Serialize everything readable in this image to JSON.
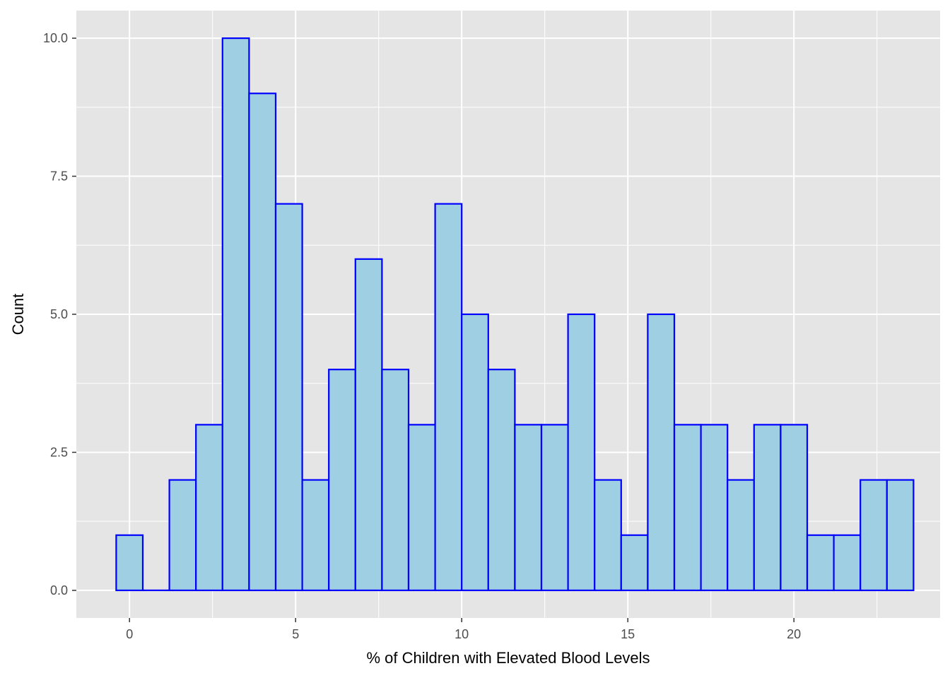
{
  "chart_data": {
    "type": "bar",
    "subtype": "histogram",
    "title": "",
    "xlabel": "% of Children with Elevated Blood Levels",
    "ylabel": "Count",
    "bin_width": 0.8,
    "bins": [
      {
        "x": 0.0,
        "count": 1
      },
      {
        "x": 0.8,
        "count": 0
      },
      {
        "x": 1.6,
        "count": 2
      },
      {
        "x": 2.4,
        "count": 3
      },
      {
        "x": 3.2,
        "count": 10
      },
      {
        "x": 4.0,
        "count": 9
      },
      {
        "x": 4.8,
        "count": 7
      },
      {
        "x": 5.6,
        "count": 2
      },
      {
        "x": 6.4,
        "count": 4
      },
      {
        "x": 7.2,
        "count": 6
      },
      {
        "x": 8.0,
        "count": 4
      },
      {
        "x": 8.8,
        "count": 3
      },
      {
        "x": 9.6,
        "count": 7
      },
      {
        "x": 10.4,
        "count": 5
      },
      {
        "x": 11.2,
        "count": 4
      },
      {
        "x": 12.0,
        "count": 3
      },
      {
        "x": 12.8,
        "count": 3
      },
      {
        "x": 13.6,
        "count": 5
      },
      {
        "x": 14.4,
        "count": 2
      },
      {
        "x": 15.2,
        "count": 1
      },
      {
        "x": 16.0,
        "count": 5
      },
      {
        "x": 16.8,
        "count": 3
      },
      {
        "x": 17.6,
        "count": 3
      },
      {
        "x": 18.4,
        "count": 2
      },
      {
        "x": 19.2,
        "count": 3
      },
      {
        "x": 20.0,
        "count": 3
      },
      {
        "x": 20.8,
        "count": 1
      },
      {
        "x": 21.6,
        "count": 1
      },
      {
        "x": 22.4,
        "count": 2
      },
      {
        "x": 23.2,
        "count": 2
      }
    ],
    "xlim": [
      -1.6,
      24.4
    ],
    "ylim": [
      -0.5,
      10.5
    ],
    "x_ticks": [
      0,
      5,
      10,
      15,
      20
    ],
    "x_tick_labels": [
      "0",
      "5",
      "10",
      "15",
      "20"
    ],
    "y_ticks": [
      0,
      2.5,
      5,
      7.5,
      10
    ],
    "y_tick_labels": [
      "0.0",
      "2.5",
      "5.0",
      "7.5",
      "10.0"
    ],
    "grid": true,
    "colors": {
      "panel_background": "#e5e5e5",
      "grid_line": "#ffffff",
      "bar_fill": "#9fcfe2",
      "bar_stroke": "#0000ff",
      "tick_text": "#4d4d4d",
      "tick_mark": "#333333"
    }
  }
}
